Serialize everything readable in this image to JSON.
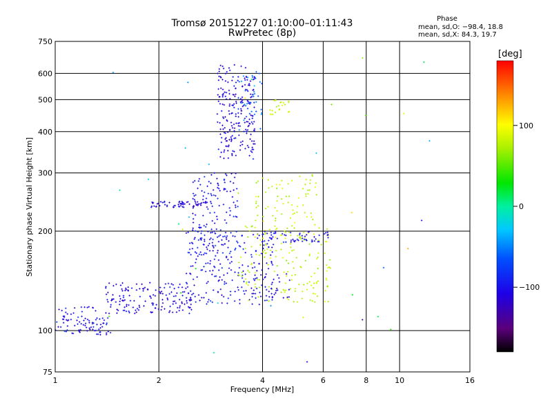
{
  "header": {
    "title": "Tromsø 20151227 01:10:00–01:11:43",
    "subtitle": "RwPretec (8p)"
  },
  "phase_legend": {
    "title": "Phase",
    "o_line": "mean, sd,O: −98.4, 18.8",
    "x_line": "mean, sd,X:  84.3, 19.7"
  },
  "colorbar": {
    "unit_label": "[deg]",
    "min": -180,
    "max": 180,
    "tick_values": [
      100,
      0,
      -100
    ],
    "tick_labels": [
      "100",
      "0",
      "−100"
    ]
  },
  "chart_data": {
    "type": "scatter",
    "title": "Tromsø 20151227 01:10:00–01:11:43",
    "subtitle": "RwPretec (8p)",
    "xlabel": "Frequency [MHz]",
    "ylabel": "Stationary phase Virtual Height [km]",
    "x_scale": "log",
    "y_scale": "log",
    "xlim": [
      1,
      16
    ],
    "ylim": [
      75,
      750
    ],
    "x_ticks": [
      1,
      2,
      4,
      6,
      8,
      10,
      16
    ],
    "x_tick_labels": [
      "1",
      "2",
      "4",
      "6",
      "8",
      "10",
      "16"
    ],
    "y_ticks": [
      75,
      100,
      200,
      300,
      400,
      500,
      600,
      750
    ],
    "y_tick_labels": [
      "75",
      "100",
      "200",
      "300",
      "400",
      "500",
      "600",
      "750"
    ],
    "grid": true,
    "color_variable": "phase (deg)",
    "clusters": [
      {
        "name": "",
        "phase": -100,
        "spread": 30,
        "n": 90,
        "xrange": [
          1.0,
          1.45
        ],
        "yrange": [
          97,
          118
        ]
      },
      {
        "name": "",
        "phase": -110,
        "spread": 30,
        "n": 160,
        "xrange": [
          1.4,
          2.5
        ],
        "yrange": [
          112,
          140
        ]
      },
      {
        "name": "",
        "phase": -100,
        "spread": 25,
        "n": 220,
        "xrange": [
          2.4,
          4.3
        ],
        "yrange": [
          120,
          200
        ]
      },
      {
        "name": "",
        "phase": -100,
        "spread": 30,
        "n": 140,
        "xrange": [
          2.5,
          3.4
        ],
        "yrange": [
          170,
          300
        ]
      },
      {
        "name": "",
        "phase": -110,
        "spread": 25,
        "n": 60,
        "xrange": [
          1.9,
          2.9
        ],
        "yrange": [
          236,
          246
        ]
      },
      {
        "name": "",
        "phase": -110,
        "spread": 25,
        "n": 220,
        "xrange": [
          2.95,
          3.8
        ],
        "yrange": [
          330,
          640
        ]
      },
      {
        "name": "",
        "phase": -60,
        "spread": 25,
        "n": 40,
        "xrange": [
          3.4,
          4.0
        ],
        "yrange": [
          400,
          620
        ]
      },
      {
        "name": "",
        "phase": 80,
        "spread": 20,
        "n": 170,
        "xrange": [
          3.4,
          6.3
        ],
        "yrange": [
          122,
          210
        ]
      },
      {
        "name": "",
        "phase": 80,
        "spread": 25,
        "n": 70,
        "xrange": [
          3.8,
          5.8
        ],
        "yrange": [
          210,
          300
        ]
      },
      {
        "name": "",
        "phase": 80,
        "spread": 25,
        "n": 22,
        "xrange": [
          4.2,
          5.0
        ],
        "yrange": [
          450,
          500
        ]
      },
      {
        "name": "",
        "phase": -100,
        "spread": 20,
        "n": 55,
        "xrange": [
          4.0,
          6.5
        ],
        "yrange": [
          185,
          200
        ]
      },
      {
        "name": "",
        "phase": -110,
        "spread": 20,
        "n": 32,
        "xrange": [
          3.7,
          4.8
        ],
        "yrange": [
          125,
          150
        ]
      },
      {
        "name": "",
        "phase": 0,
        "spread": 160,
        "n": 40,
        "xrange": [
          1.1,
          13
        ],
        "yrange": [
          78,
          680
        ]
      }
    ]
  }
}
